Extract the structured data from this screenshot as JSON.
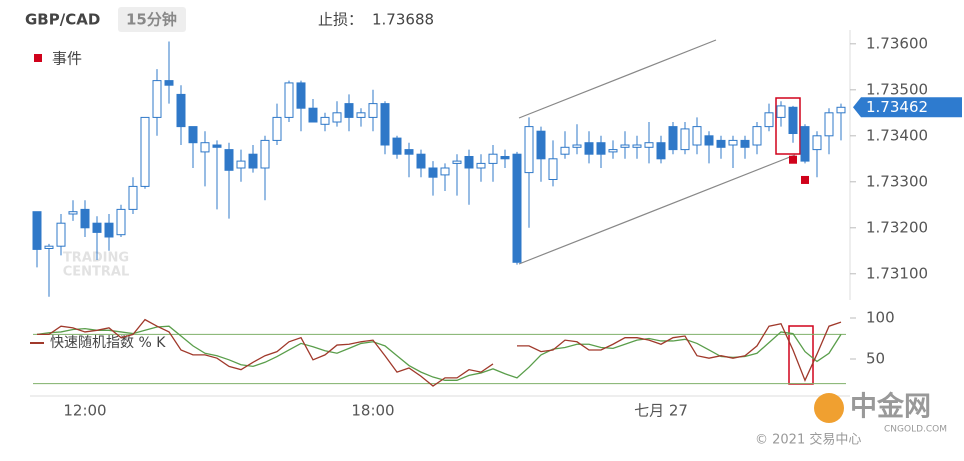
{
  "chart_data": [
    {
      "type": "candlestick",
      "title": "GBP/CAD",
      "timeframe": "15分钟",
      "stop_loss_label": "止损：",
      "stop_loss": 1.73688,
      "legend": "事件",
      "watermark": [
        "TRADING",
        "CENTRAL"
      ],
      "copyright": "© 2021 交易中心",
      "logo": "中金网",
      "logo_sub": "CNGOLD.COM",
      "categories": [
        null,
        null,
        null,
        null,
        "12:00",
        null,
        null,
        null,
        null,
        null,
        null,
        null,
        null,
        null,
        null,
        null,
        null,
        null,
        null,
        null,
        null,
        null,
        null,
        null,
        null,
        null,
        null,
        null,
        "18:00",
        null,
        null,
        null,
        null,
        null,
        null,
        null,
        null,
        null,
        null,
        null,
        null,
        null,
        null,
        null,
        null,
        null,
        null,
        null,
        null,
        null,
        null,
        null,
        "七月 27",
        null,
        null,
        null,
        null,
        null,
        null,
        null,
        null,
        null,
        null,
        null,
        null,
        null,
        null,
        null
      ],
      "open": [
        1.73235,
        1.73155,
        1.7316,
        1.7323,
        1.7324,
        1.7321,
        1.7321,
        1.73185,
        1.7324,
        1.7329,
        1.7344,
        1.7352,
        1.7349,
        1.7342,
        1.73365,
        1.7338,
        1.7337,
        1.7333,
        1.7336,
        1.7333,
        1.7339,
        1.7344,
        1.73515,
        1.7346,
        1.73425,
        1.7343,
        1.7347,
        1.7344,
        1.7344,
        1.7347,
        1.73395,
        1.7337,
        1.7336,
        1.7333,
        1.73315,
        1.7334,
        1.73355,
        1.7333,
        1.7334,
        1.73355,
        1.7336,
        1.7332,
        1.7341,
        1.73305,
        1.7336,
        1.73375,
        1.73385,
        1.73385,
        1.73365,
        1.73375,
        1.73375,
        1.73375,
        1.73385,
        1.7342,
        1.7337,
        1.7338,
        1.734,
        1.7339,
        1.7338,
        1.7339,
        1.7338,
        1.7342,
        1.7344,
        1.73462,
        1.7342,
        1.7337,
        1.734,
        1.7345
      ],
      "high": [
        1.73235,
        1.73165,
        1.7323,
        1.7326,
        1.7326,
        1.73225,
        1.7323,
        1.7325,
        1.7331,
        1.7344,
        1.73545,
        1.73605,
        1.7351,
        1.7342,
        1.7341,
        1.7339,
        1.73385,
        1.7337,
        1.7338,
        1.734,
        1.7347,
        1.7352,
        1.7352,
        1.7348,
        1.7345,
        1.73475,
        1.7349,
        1.7346,
        1.735,
        1.73475,
        1.734,
        1.73385,
        1.7337,
        1.73345,
        1.7334,
        1.7336,
        1.7337,
        1.7336,
        1.7338,
        1.7337,
        1.73365,
        1.7344,
        1.7342,
        1.7339,
        1.7341,
        1.73425,
        1.7341,
        1.734,
        1.7339,
        1.7341,
        1.734,
        1.7343,
        1.734,
        1.7343,
        1.7343,
        1.7344,
        1.7341,
        1.734,
        1.734,
        1.734,
        1.7343,
        1.7347,
        1.73475,
        1.73465,
        1.73425,
        1.7341,
        1.7346,
        1.7347
      ],
      "low": [
        1.73114,
        1.7305,
        1.7314,
        1.73215,
        1.7318,
        1.7313,
        1.7315,
        1.7318,
        1.7323,
        1.73285,
        1.734,
        1.7347,
        1.7338,
        1.7333,
        1.7329,
        1.7324,
        1.7322,
        1.733,
        1.7332,
        1.7326,
        1.7338,
        1.7343,
        1.7341,
        1.7343,
        1.7341,
        1.7342,
        1.7341,
        1.7342,
        1.7341,
        1.7336,
        1.7335,
        1.7331,
        1.7331,
        1.7327,
        1.7328,
        1.7327,
        1.7325,
        1.733,
        1.733,
        1.7333,
        1.7312,
        1.732,
        1.733,
        1.7329,
        1.7335,
        1.7336,
        1.7334,
        1.7333,
        1.7335,
        1.7335,
        1.7335,
        1.7334,
        1.7334,
        1.7336,
        1.7336,
        1.7336,
        1.7334,
        1.7335,
        1.7333,
        1.7335,
        1.7336,
        1.7341,
        1.7342,
        1.73385,
        1.7334,
        1.7331,
        1.7336,
        1.7339
      ],
      "close": [
        1.73153,
        1.7316,
        1.7321,
        1.73235,
        1.732,
        1.7319,
        1.7318,
        1.7324,
        1.7329,
        1.7344,
        1.7352,
        1.7351,
        1.7342,
        1.73385,
        1.73385,
        1.73375,
        1.73325,
        1.73345,
        1.7333,
        1.7339,
        1.7344,
        1.73515,
        1.7346,
        1.7343,
        1.7344,
        1.7345,
        1.7344,
        1.7345,
        1.7347,
        1.7338,
        1.7336,
        1.7336,
        1.7333,
        1.7331,
        1.7333,
        1.73345,
        1.7333,
        1.7334,
        1.7336,
        1.7335,
        1.73125,
        1.7342,
        1.7335,
        1.7335,
        1.73375,
        1.7338,
        1.7336,
        1.7336,
        1.7337,
        1.7338,
        1.7338,
        1.73385,
        1.7335,
        1.7337,
        1.73415,
        1.7342,
        1.7338,
        1.73375,
        1.7339,
        1.73375,
        1.7342,
        1.7345,
        1.73465,
        1.73405,
        1.73345,
        1.734,
        1.7345,
        1.73462
      ],
      "events": [
        null,
        null,
        null,
        null,
        null,
        null,
        null,
        null,
        null,
        null,
        null,
        null,
        null,
        null,
        null,
        null,
        null,
        null,
        null,
        null,
        null,
        null,
        null,
        null,
        null,
        null,
        null,
        null,
        null,
        null,
        null,
        null,
        null,
        null,
        null,
        null,
        null,
        null,
        null,
        null,
        null,
        null,
        null,
        null,
        null,
        null,
        null,
        null,
        null,
        null,
        null,
        null,
        null,
        null,
        null,
        null,
        null,
        null,
        null,
        null,
        null,
        null,
        null,
        1.73348,
        1.73304,
        null,
        null,
        null
      ],
      "last_price": 1.73462,
      "up_color": "#ffffff",
      "down_color": "#2f78c8",
      "event_color": "#d0021b",
      "ylim": [
        1.73043,
        1.73617
      ],
      "yticks": [
        {
          "value": 1.731,
          "label": "1.73100"
        },
        {
          "value": 1.732,
          "label": "1.73200"
        },
        {
          "value": 1.733,
          "label": "1.73300"
        },
        {
          "value": 1.734,
          "label": "1.73400"
        },
        {
          "value": 1.735,
          "label": "1.73500"
        },
        {
          "value": 1.736,
          "label": "1.73600"
        }
      ]
    },
    {
      "type": "line",
      "series": [
        {
          "name": "快速随机指数 % K",
          "color": "#a0392b",
          "values": [
            80,
            80,
            90,
            88,
            83,
            85,
            88,
            76,
            80,
            98,
            90,
            83,
            61,
            55,
            55,
            51,
            41,
            37,
            46,
            54,
            59,
            71,
            76,
            49,
            55,
            67,
            68,
            71,
            73,
            54,
            34,
            39,
            29,
            17,
            27,
            27,
            37,
            34,
            44,
            null,
            66,
            66,
            59,
            61,
            73,
            71,
            61,
            61,
            68,
            76,
            76,
            73,
            68,
            76,
            78,
            54,
            51,
            54,
            51,
            54,
            66,
            90,
            93,
            61,
            24,
            56,
            90,
            95
          ]
        },
        {
          "color": "#5a9e4b",
          "values": [
            80,
            82,
            83,
            86,
            87,
            85,
            85,
            83,
            81,
            85,
            89,
            90,
            78,
            66,
            57,
            54,
            49,
            43,
            41,
            46,
            53,
            61,
            69,
            65,
            60,
            57,
            63,
            69,
            71,
            66,
            54,
            42,
            34,
            28,
            24,
            24,
            30,
            33,
            38,
            32,
            27,
            40,
            55,
            62,
            64,
            68,
            68,
            64,
            63,
            68,
            73,
            75,
            72,
            72,
            74,
            69,
            61,
            53,
            52,
            53,
            57,
            70,
            83,
            81,
            59,
            47,
            57,
            80
          ]
        }
      ],
      "levels": [
        80,
        20
      ],
      "level_color": "#7fb069",
      "ylim": [
        5,
        110
      ],
      "yticks": [
        50,
        100
      ]
    }
  ]
}
